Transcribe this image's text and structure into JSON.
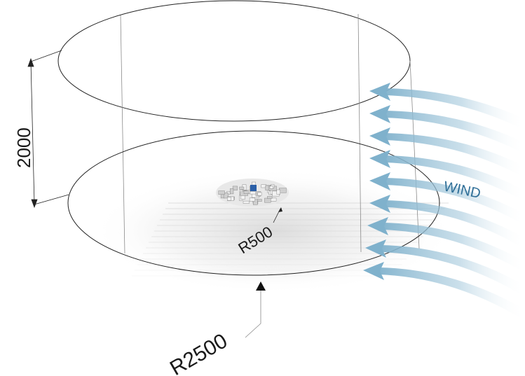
{
  "diagram": {
    "height_label": "2000",
    "inner_radius_label": "R500",
    "outer_radius_label": "R2500",
    "wind_label": "WIND",
    "colors": {
      "outline": "#222222",
      "wind_arrow": "#7fb1cc",
      "wind_text": "#2f6f98",
      "city_block": "#d9d9d9",
      "target_building": "#2b5fa8"
    },
    "wind_arrow_count": 9
  }
}
